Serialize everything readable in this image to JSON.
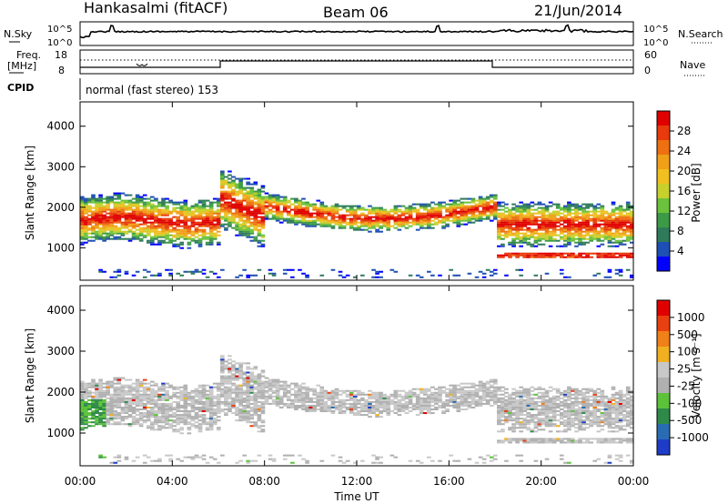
{
  "header": {
    "station": "Hankasalmi (fitACF)",
    "beam": "Beam 06",
    "date": "21/Jun/2014"
  },
  "top_panels": {
    "nsky_label": "N.Sky",
    "nsky_ticks": [
      "10^5",
      "10^0"
    ],
    "nsky_right_ticks": [
      "10^5",
      "10^0"
    ],
    "nsearch_label": "N.Search",
    "freq_label_1": "Freq.",
    "freq_label_2": "[MHz]",
    "freq_ticks": [
      "18",
      "8"
    ],
    "nave_ticks": [
      "60",
      "0"
    ],
    "nave_label": "Nave",
    "cpid_label": "CPID",
    "cpid_text": "normal (fast stereo) 153"
  },
  "chart_data": [
    {
      "type": "heatmap",
      "name": "power",
      "ylabel": "Slant Range [km]",
      "yticks": [
        "4000",
        "3000",
        "2000",
        "1000"
      ],
      "ylim": [
        200,
        4600
      ],
      "xlim": [
        0,
        24
      ],
      "colorbar_label": "Power [dB]",
      "colorbar_ticks": [
        "28",
        "24",
        "20",
        "16",
        "12",
        "8",
        "4"
      ],
      "colorbar_colors": [
        "#0000ff",
        "#1e4fb4",
        "#2f7a5a",
        "#3c9a46",
        "#6cc23c",
        "#c8d02c",
        "#f0c020",
        "#f0a018",
        "#ee7010",
        "#e83a0c",
        "#e00000"
      ]
    },
    {
      "type": "heatmap",
      "name": "velocity",
      "ylabel": "Slant Range [km]",
      "yticks": [
        "4000",
        "3000",
        "2000",
        "1000"
      ],
      "ylim": [
        200,
        4600
      ],
      "xlim": [
        0,
        24
      ],
      "colorbar_label": "Velocity [m s⁻¹]",
      "colorbar_ticks": [
        "1000",
        "500",
        "100",
        "25",
        "-25",
        "-100",
        "-500",
        "-1000"
      ],
      "colorbar_colors": [
        "#1e3cc8",
        "#2a6cb4",
        "#2f8a4a",
        "#5cc23a",
        "#b0b0b0",
        "#c8c8c8",
        "#f0b020",
        "#f08018",
        "#e84010",
        "#e00000"
      ]
    }
  ],
  "x_axis": {
    "ticks": [
      "00:00",
      "04:00",
      "08:00",
      "12:00",
      "16:00",
      "20:00",
      "00:00"
    ],
    "label": "Time UT"
  }
}
